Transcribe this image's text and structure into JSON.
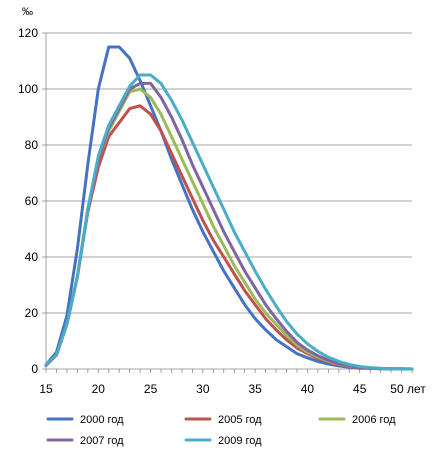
{
  "chart_data": {
    "type": "line",
    "ylabel": "‰",
    "x_unit_label": "50 лет",
    "ylim": [
      0,
      120
    ],
    "xlim": [
      15,
      50
    ],
    "yticks": [
      0,
      20,
      40,
      60,
      80,
      100,
      120
    ],
    "xticks": [
      15,
      20,
      25,
      30,
      35,
      40,
      45,
      50
    ],
    "x_tick_labels": [
      "15",
      "20",
      "25",
      "30",
      "35",
      "40",
      "45",
      "50 лет"
    ],
    "grid": "horizontal",
    "legend_position": "bottom",
    "x": [
      15,
      16,
      17,
      18,
      19,
      20,
      21,
      22,
      23,
      24,
      25,
      26,
      27,
      28,
      29,
      30,
      31,
      32,
      33,
      34,
      35,
      36,
      37,
      38,
      39,
      40,
      41,
      42,
      43,
      44,
      45,
      46,
      47,
      48,
      49,
      50
    ],
    "series": [
      {
        "name": "2000 год",
        "color": "#4472C4",
        "values": [
          1.5,
          6,
          19,
          43,
          73,
          100,
          115,
          115,
          111,
          103,
          94,
          85,
          75,
          66,
          57,
          49,
          42,
          35,
          29,
          23,
          18,
          14,
          10.5,
          8,
          5.5,
          4,
          2.7,
          1.8,
          1.1,
          0.6,
          0.3,
          0.2,
          0.1,
          0.05,
          0.02,
          0.01
        ]
      },
      {
        "name": "2005 год",
        "color": "#C0504D",
        "values": [
          1.3,
          5,
          16,
          33,
          56,
          72,
          83,
          88,
          93,
          94,
          91,
          85,
          77,
          69,
          61,
          53,
          46,
          40,
          34,
          28,
          23,
          18,
          14,
          10.5,
          7.5,
          5.5,
          3.8,
          2.5,
          1.5,
          0.9,
          0.5,
          0.3,
          0.15,
          0.08,
          0.03,
          0.01
        ]
      },
      {
        "name": "2006 год",
        "color": "#9BBB59",
        "values": [
          1.3,
          5,
          16,
          33,
          57,
          75,
          85,
          92,
          99,
          100,
          97,
          91,
          83,
          75,
          67,
          59,
          51,
          44,
          37,
          31,
          25,
          20,
          16,
          12,
          8.5,
          6,
          4.2,
          2.8,
          1.7,
          1,
          0.6,
          0.3,
          0.15,
          0.08,
          0.03,
          0.01
        ]
      },
      {
        "name": "2007 год",
        "color": "#8064A2",
        "values": [
          1.3,
          5,
          16,
          33,
          57,
          75,
          86,
          93,
          100,
          102,
          102,
          97,
          90,
          82,
          73,
          65,
          57,
          49,
          42,
          35,
          29,
          23,
          18,
          13.5,
          9.5,
          6.8,
          4.7,
          3.1,
          1.9,
          1.1,
          0.6,
          0.3,
          0.15,
          0.08,
          0.03,
          0.01
        ]
      },
      {
        "name": "2009 год",
        "color": "#4BACC6",
        "values": [
          1.5,
          5,
          16,
          33,
          57,
          76,
          87,
          94,
          101,
          105,
          105,
          102,
          96,
          89,
          81,
          73,
          65,
          57,
          49,
          42,
          35,
          28.5,
          22.5,
          17,
          12.5,
          9,
          6.3,
          4.2,
          2.7,
          1.6,
          0.9,
          0.5,
          0.25,
          0.12,
          0.05,
          0.02
        ]
      }
    ]
  }
}
